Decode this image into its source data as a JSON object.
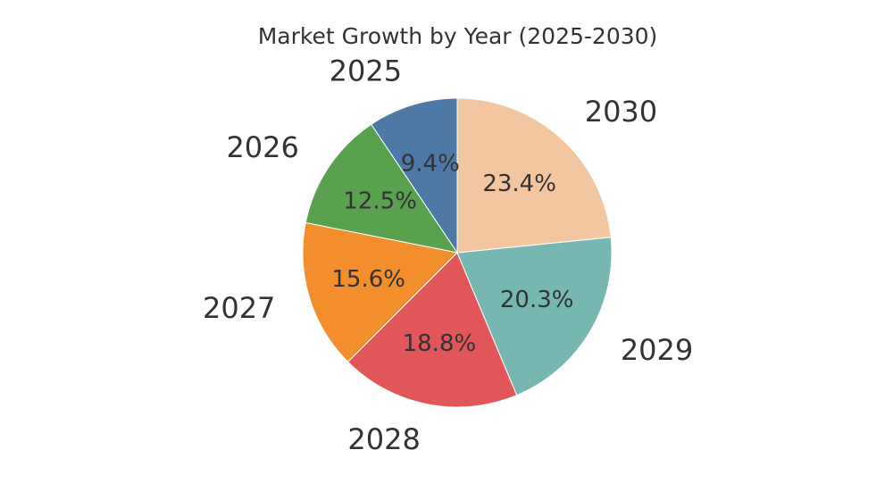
{
  "chart_data": {
    "type": "pie",
    "title": "Market Growth by Year (2025-2030)",
    "categories": [
      "2025",
      "2026",
      "2027",
      "2028",
      "2029",
      "2030"
    ],
    "values": [
      9.4,
      12.5,
      15.6,
      18.8,
      20.3,
      23.4
    ],
    "value_labels": [
      "9.4%",
      "12.5%",
      "15.6%",
      "18.8%",
      "20.3%",
      "23.4%"
    ],
    "colors": [
      "#4e79a7",
      "#59a14f",
      "#f28e2b",
      "#e15759",
      "#76b7b2",
      "#f2c6a0"
    ],
    "start_angle_deg": 90,
    "direction": "counterclockwise",
    "legend": "none"
  }
}
